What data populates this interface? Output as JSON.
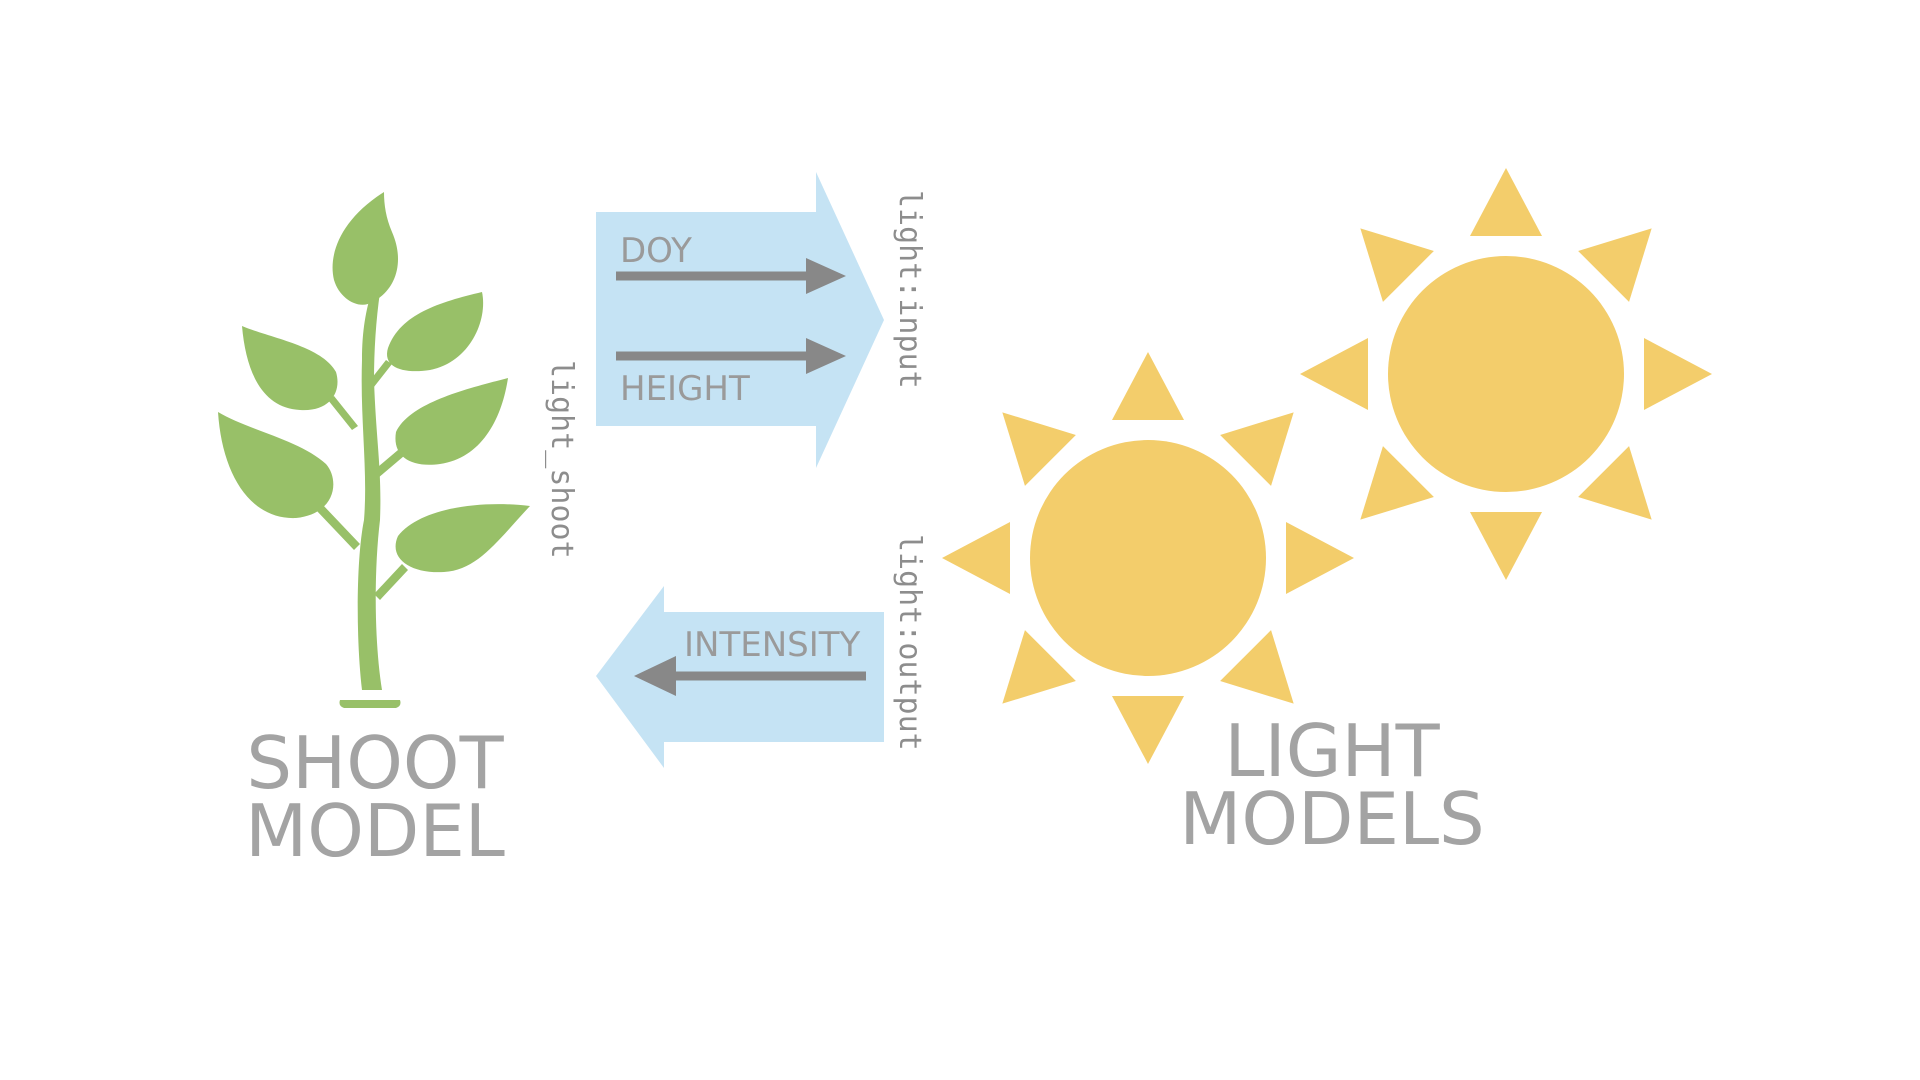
{
  "colors": {
    "leaf": "#98c068",
    "sun": "#f3cd6b",
    "arrow_fill": "#c5e3f4",
    "arrow_line": "#888888",
    "text": "#a3a3a3"
  },
  "shoot": {
    "icon": "plant-icon",
    "title_line1": "SHOOT",
    "title_line2": "MODEL",
    "side_label": "light_shoot"
  },
  "input_arrow": {
    "items": [
      "DOY",
      "HEIGHT"
    ],
    "side_label": "light:input"
  },
  "output_arrow": {
    "item": "INTENSITY",
    "side_label": "light:output"
  },
  "light": {
    "icon": "sun-icon",
    "title_line1": "LIGHT",
    "title_line2": "MODELS"
  }
}
